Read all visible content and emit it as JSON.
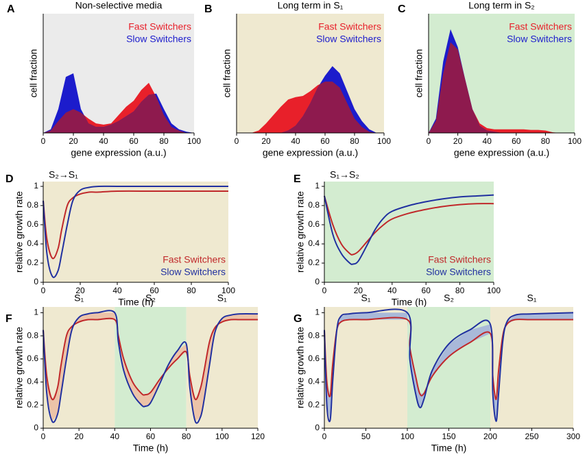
{
  "chart_data": [
    {
      "type": "area",
      "panel_label": "A",
      "title": "Non-selective media",
      "background": "#ebebeb",
      "x": [
        0,
        5,
        10,
        15,
        20,
        25,
        30,
        35,
        40,
        45,
        50,
        55,
        60,
        65,
        70,
        75,
        80,
        85,
        90,
        95,
        100
      ],
      "xlim": [
        0,
        100
      ],
      "xticks": [
        0,
        20,
        40,
        60,
        80,
        100
      ],
      "ylim": [
        0,
        1
      ],
      "xlabel": "gene expression (a.u.)",
      "ylabel": "cell fraction",
      "legend": "upper right",
      "overlap_color": "#8e1a4e",
      "series": [
        {
          "name": "Fast Switchers",
          "color": "#e8202a",
          "values": [
            0,
            0.02,
            0.1,
            0.17,
            0.2,
            0.17,
            0.12,
            0.08,
            0.07,
            0.08,
            0.15,
            0.22,
            0.27,
            0.36,
            0.42,
            0.3,
            0.15,
            0.05,
            0.02,
            0,
            0
          ]
        },
        {
          "name": "Slow Switchers",
          "color": "#1c1ccc",
          "values": [
            0,
            0.03,
            0.2,
            0.47,
            0.5,
            0.2,
            0.08,
            0.05,
            0.05,
            0.07,
            0.1,
            0.14,
            0.18,
            0.26,
            0.32,
            0.33,
            0.2,
            0.08,
            0.03,
            0.01,
            0
          ]
        }
      ]
    },
    {
      "type": "area",
      "panel_label": "B",
      "title": "Long term in S₁",
      "background": "#efe9d0",
      "x": [
        0,
        5,
        10,
        15,
        20,
        25,
        30,
        35,
        40,
        45,
        50,
        55,
        60,
        65,
        70,
        75,
        80,
        85,
        90,
        95,
        100
      ],
      "xlim": [
        0,
        100
      ],
      "xticks": [
        0,
        20,
        40,
        60,
        80,
        100
      ],
      "ylim": [
        0,
        1
      ],
      "xlabel": "gene expression (a.u.)",
      "ylabel": "cell fraction",
      "legend": "upper right",
      "overlap_color": "#8e1a4e",
      "series": [
        {
          "name": "Fast Switchers",
          "color": "#e8202a",
          "values": [
            0,
            0,
            0,
            0.02,
            0.08,
            0.15,
            0.22,
            0.28,
            0.3,
            0.31,
            0.35,
            0.4,
            0.43,
            0.43,
            0.38,
            0.25,
            0.12,
            0.05,
            0.01,
            0,
            0
          ]
        },
        {
          "name": "Slow Switchers",
          "color": "#1c1ccc",
          "values": [
            0,
            0,
            0,
            0,
            0,
            0,
            0,
            0.02,
            0.06,
            0.14,
            0.25,
            0.38,
            0.48,
            0.56,
            0.5,
            0.35,
            0.2,
            0.1,
            0.03,
            0,
            0
          ]
        }
      ]
    },
    {
      "type": "area",
      "panel_label": "C",
      "title": "Long term in S₂",
      "background": "#d3ecd0",
      "x": [
        0,
        5,
        10,
        15,
        20,
        25,
        30,
        35,
        40,
        45,
        50,
        55,
        60,
        65,
        70,
        75,
        80,
        85,
        90,
        95,
        100
      ],
      "xlim": [
        0,
        100
      ],
      "xticks": [
        0,
        20,
        40,
        60,
        80,
        100
      ],
      "ylim": [
        0,
        1
      ],
      "xlabel": "gene expression (a.u.)",
      "ylabel": "cell fraction",
      "legend": "upper right",
      "overlap_color": "#8e1a4e",
      "series": [
        {
          "name": "Fast Switchers",
          "color": "#e8202a",
          "values": [
            0,
            0.1,
            0.5,
            0.76,
            0.7,
            0.45,
            0.2,
            0.08,
            0.04,
            0.03,
            0.03,
            0.03,
            0.03,
            0.03,
            0.025,
            0.025,
            0.02,
            0.005,
            0,
            0,
            0
          ]
        },
        {
          "name": "Slow Switchers",
          "color": "#1c1ccc",
          "values": [
            0,
            0.12,
            0.6,
            0.87,
            0.72,
            0.45,
            0.2,
            0.06,
            0.02,
            0.01,
            0,
            0,
            0,
            0,
            0,
            0,
            0,
            0,
            0,
            0,
            0
          ]
        }
      ]
    },
    {
      "type": "line",
      "panel_label": "D",
      "annotation": "S₂→S₁",
      "background": "#efe9d0",
      "x": [
        0,
        2,
        5,
        8,
        10,
        13,
        16,
        20,
        25,
        30,
        40,
        60,
        80,
        100
      ],
      "xlim": [
        0,
        100
      ],
      "xticks": [
        0,
        20,
        40,
        60,
        80,
        100
      ],
      "ylim": [
        0,
        1.05
      ],
      "yticks": [
        0,
        0.2,
        0.4,
        0.6,
        0.8,
        1
      ],
      "xlabel": "Time (h)",
      "ylabel": "relative growth rate",
      "legend": "lower right",
      "series": [
        {
          "name": "Fast Switchers",
          "color": "#c0282a",
          "values": [
            0.85,
            0.45,
            0.25,
            0.35,
            0.55,
            0.8,
            0.88,
            0.92,
            0.94,
            0.94,
            0.95,
            0.95,
            0.95,
            0.95
          ]
        },
        {
          "name": "Slow Switchers",
          "color": "#2030a0",
          "values": [
            0.85,
            0.3,
            0.06,
            0.12,
            0.3,
            0.6,
            0.85,
            0.96,
            0.99,
            1,
            1,
            1,
            1,
            1
          ]
        }
      ]
    },
    {
      "type": "line",
      "panel_label": "E",
      "annotation": "S₁→S₂",
      "background": "#d3ecd0",
      "x": [
        0,
        5,
        10,
        15,
        17,
        20,
        25,
        30,
        35,
        40,
        50,
        60,
        70,
        80,
        90,
        100
      ],
      "xlim": [
        0,
        100
      ],
      "xticks": [
        0,
        20,
        40,
        60,
        80,
        100
      ],
      "ylim": [
        0,
        1.05
      ],
      "yticks": [
        0,
        0.2,
        0.4,
        0.6,
        0.8,
        1
      ],
      "xlabel": "Time (h)",
      "ylabel": "relative growth rate",
      "legend": "lower right",
      "series": [
        {
          "name": "Fast Switchers",
          "color": "#c0282a",
          "values": [
            0.9,
            0.6,
            0.4,
            0.3,
            0.29,
            0.32,
            0.42,
            0.52,
            0.6,
            0.66,
            0.72,
            0.76,
            0.79,
            0.81,
            0.82,
            0.82
          ]
        },
        {
          "name": "Slow Switchers",
          "color": "#2030a0",
          "values": [
            0.9,
            0.5,
            0.3,
            0.2,
            0.19,
            0.22,
            0.38,
            0.55,
            0.67,
            0.74,
            0.8,
            0.84,
            0.87,
            0.89,
            0.9,
            0.91
          ]
        }
      ]
    },
    {
      "type": "line",
      "panel_label": "F",
      "fill_between": "#ecc3a8",
      "regions": [
        {
          "start": 0,
          "end": 40,
          "label": "S₁",
          "color": "#efe9d0"
        },
        {
          "start": 40,
          "end": 80,
          "label": "S₂",
          "color": "#d3ecd0"
        },
        {
          "start": 80,
          "end": 120,
          "label": "S₁",
          "color": "#efe9d0"
        }
      ],
      "x": [
        0,
        2,
        5,
        8,
        10,
        13,
        16,
        20,
        25,
        30,
        40,
        42,
        45,
        50,
        55,
        57,
        60,
        65,
        70,
        75,
        80,
        82,
        85,
        88,
        90,
        93,
        96,
        100,
        105,
        110,
        120
      ],
      "xlim": [
        0,
        120
      ],
      "xticks": [
        0,
        20,
        40,
        60,
        80,
        100,
        120
      ],
      "ylim": [
        0,
        1.05
      ],
      "yticks": [
        0,
        0.2,
        0.4,
        0.6,
        0.8,
        1
      ],
      "xlabel": "Time (h)",
      "ylabel": "relative growth rate",
      "series": [
        {
          "color": "#c0282a",
          "values": [
            0.85,
            0.45,
            0.25,
            0.35,
            0.55,
            0.8,
            0.88,
            0.92,
            0.94,
            0.94,
            0.94,
            0.8,
            0.6,
            0.4,
            0.3,
            0.29,
            0.31,
            0.42,
            0.52,
            0.6,
            0.66,
            0.45,
            0.25,
            0.35,
            0.5,
            0.75,
            0.87,
            0.92,
            0.94,
            0.94,
            0.94
          ]
        },
        {
          "color": "#2030a0",
          "values": [
            0.85,
            0.3,
            0.06,
            0.12,
            0.3,
            0.6,
            0.85,
            0.96,
            0.99,
            1,
            1,
            0.75,
            0.5,
            0.3,
            0.2,
            0.19,
            0.22,
            0.38,
            0.55,
            0.67,
            0.73,
            0.35,
            0.06,
            0.1,
            0.25,
            0.55,
            0.83,
            0.95,
            0.98,
            0.99,
            0.99
          ]
        }
      ]
    },
    {
      "type": "line",
      "panel_label": "G",
      "fill_between": "#a9b9d9",
      "regions": [
        {
          "start": 0,
          "end": 100,
          "label": "S₁",
          "color": "#efe9d0"
        },
        {
          "start": 100,
          "end": 200,
          "label": "S₂",
          "color": "#d3ecd0"
        },
        {
          "start": 200,
          "end": 300,
          "label": "S₁",
          "color": "#efe9d0"
        }
      ],
      "x": [
        0,
        3,
        7,
        10,
        15,
        20,
        30,
        50,
        100,
        103,
        110,
        115,
        120,
        130,
        150,
        175,
        200,
        203,
        207,
        210,
        215,
        220,
        230,
        250,
        300
      ],
      "xlim": [
        0,
        300
      ],
      "xticks": [
        0,
        50,
        100,
        150,
        200,
        250,
        300
      ],
      "ylim": [
        0,
        1.05
      ],
      "yticks": [
        0,
        0.2,
        0.4,
        0.6,
        0.8,
        1
      ],
      "xlabel": "Time (h)",
      "ylabel": "relative growth rate",
      "series": [
        {
          "color": "#c0282a",
          "values": [
            0.85,
            0.4,
            0.28,
            0.55,
            0.85,
            0.92,
            0.94,
            0.94,
            0.94,
            0.7,
            0.45,
            0.3,
            0.3,
            0.45,
            0.62,
            0.74,
            0.82,
            0.45,
            0.25,
            0.5,
            0.8,
            0.9,
            0.94,
            0.94,
            0.94
          ]
        },
        {
          "color": "#2030a0",
          "values": [
            0.85,
            0.2,
            0.07,
            0.4,
            0.85,
            0.97,
            0.99,
            1,
            1,
            0.6,
            0.3,
            0.18,
            0.25,
            0.5,
            0.73,
            0.85,
            0.9,
            0.3,
            0.06,
            0.3,
            0.75,
            0.92,
            0.98,
            0.99,
            1
          ]
        }
      ]
    }
  ]
}
